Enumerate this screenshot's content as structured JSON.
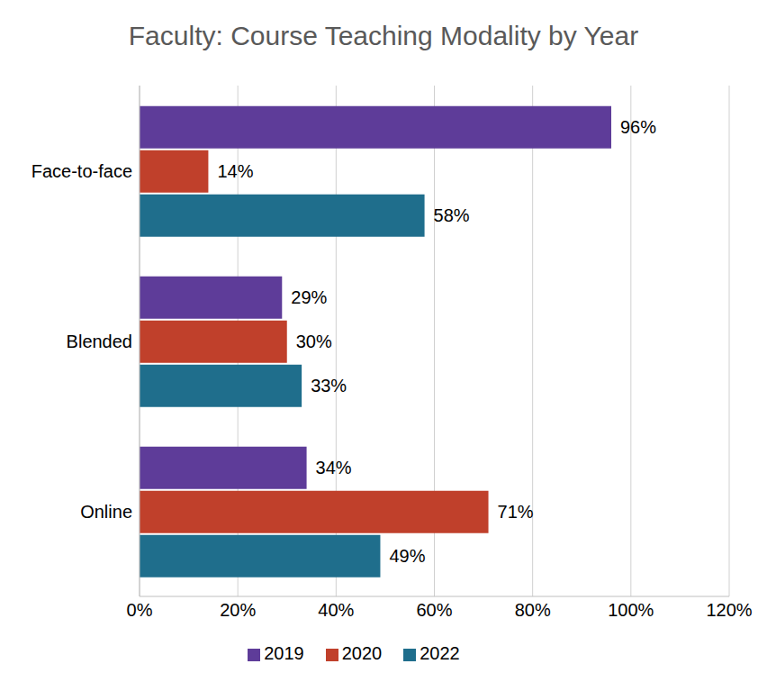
{
  "chart_data": {
    "type": "bar",
    "title": "Faculty: Course Teaching Modality by Year",
    "orientation": "horizontal",
    "categories": [
      "Face-to-face",
      "Blended",
      "Online"
    ],
    "series": [
      {
        "name": "2019",
        "color": "#5e3c99",
        "values": [
          96,
          29,
          34
        ],
        "value_labels": [
          "96%",
          "29%",
          "34%"
        ]
      },
      {
        "name": "2020",
        "color": "#c0402b",
        "values": [
          14,
          30,
          71
        ],
        "value_labels": [
          "14%",
          "30%",
          "71%"
        ]
      },
      {
        "name": "2022",
        "color": "#1f6e8c",
        "values": [
          58,
          33,
          49
        ],
        "value_labels": [
          "58%",
          "33%",
          "49%"
        ]
      }
    ],
    "xlim": [
      0,
      120
    ],
    "xticks": [
      {
        "value": 0,
        "label": "0%"
      },
      {
        "value": 20,
        "label": "20%"
      },
      {
        "value": 40,
        "label": "40%"
      },
      {
        "value": 60,
        "label": "60%"
      },
      {
        "value": 80,
        "label": "80%"
      },
      {
        "value": 100,
        "label": "100%"
      },
      {
        "value": 120,
        "label": "120%"
      }
    ],
    "grid": true,
    "legend": "bottom",
    "data_labels": true
  }
}
